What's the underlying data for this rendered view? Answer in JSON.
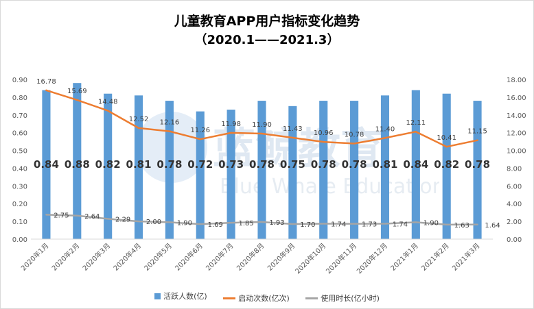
{
  "title_line1": "儿童教育APP用户指标变化趋势",
  "title_line2": "（2020.1——2021.3）",
  "watermark": {
    "cn": "蓝鲸教育",
    "en": "Blue Whale Education"
  },
  "colors": {
    "bar": "#5b9bd5",
    "launch": "#ed7d31",
    "duration": "#a5a5a5"
  },
  "chart_data": {
    "type": "bar",
    "categories": [
      "2020年1月",
      "2020年2月",
      "2020年3月",
      "2020年4月",
      "2020年5月",
      "2020年6月",
      "2020年7月",
      "2020年8月",
      "2020年9月",
      "2020年10月",
      "2020年11月",
      "2020年12月",
      "2021年1月",
      "2021年2月",
      "2021年3月"
    ],
    "series": [
      {
        "name": "活跃人数(亿)",
        "type": "bar",
        "axis": "left",
        "values": [
          0.84,
          0.88,
          0.82,
          0.81,
          0.78,
          0.72,
          0.73,
          0.78,
          0.75,
          0.78,
          0.78,
          0.81,
          0.84,
          0.82,
          0.78
        ]
      },
      {
        "name": "启动次数(亿次)",
        "type": "line",
        "axis": "right",
        "values": [
          16.78,
          15.69,
          14.48,
          12.52,
          12.16,
          11.26,
          11.98,
          11.9,
          11.43,
          10.96,
          10.78,
          11.4,
          12.11,
          10.41,
          11.15
        ]
      },
      {
        "name": "使用时长(亿小时)",
        "type": "line",
        "axis": "right",
        "values": [
          2.75,
          2.64,
          2.29,
          2.0,
          1.9,
          1.69,
          1.85,
          1.93,
          1.7,
          1.74,
          1.73,
          1.74,
          1.9,
          1.63,
          1.64
        ]
      }
    ],
    "ylim_left": [
      0,
      0.9
    ],
    "yticks_left": [
      "0.00",
      "0.10",
      "0.20",
      "0.30",
      "0.40",
      "0.50",
      "0.60",
      "0.70",
      "0.80",
      "0.90"
    ],
    "ylim_right": [
      0,
      18
    ],
    "yticks_right": [
      "0.00",
      "2.00",
      "4.00",
      "6.00",
      "8.00",
      "10.00",
      "12.00",
      "14.00",
      "16.00",
      "18.00"
    ],
    "bar_labels": [
      "0.84",
      "0.88",
      "0.82",
      "0.81",
      "0.78",
      "0.72",
      "0.73",
      "0.78",
      "0.75",
      "0.78",
      "0.78",
      "0.81",
      "0.84",
      "0.82",
      "0.78"
    ],
    "launch_labels": [
      "16.78",
      "15.69",
      "14.48",
      "12.52",
      "12.16",
      "11.26",
      "11.98",
      "11.90",
      "11.43",
      "10.96",
      "10.78",
      "11.40",
      "12.11",
      "10.41",
      "11.15"
    ],
    "duration_labels": [
      "2.75",
      "2.64",
      "2.29",
      "2.00",
      "1.90",
      "1.69",
      "1.85",
      "1.93",
      "1.70",
      "1.74",
      "1.73",
      "1.74",
      "1.90",
      "1.63",
      "1.64"
    ],
    "grid": false,
    "legend_position": "bottom"
  }
}
